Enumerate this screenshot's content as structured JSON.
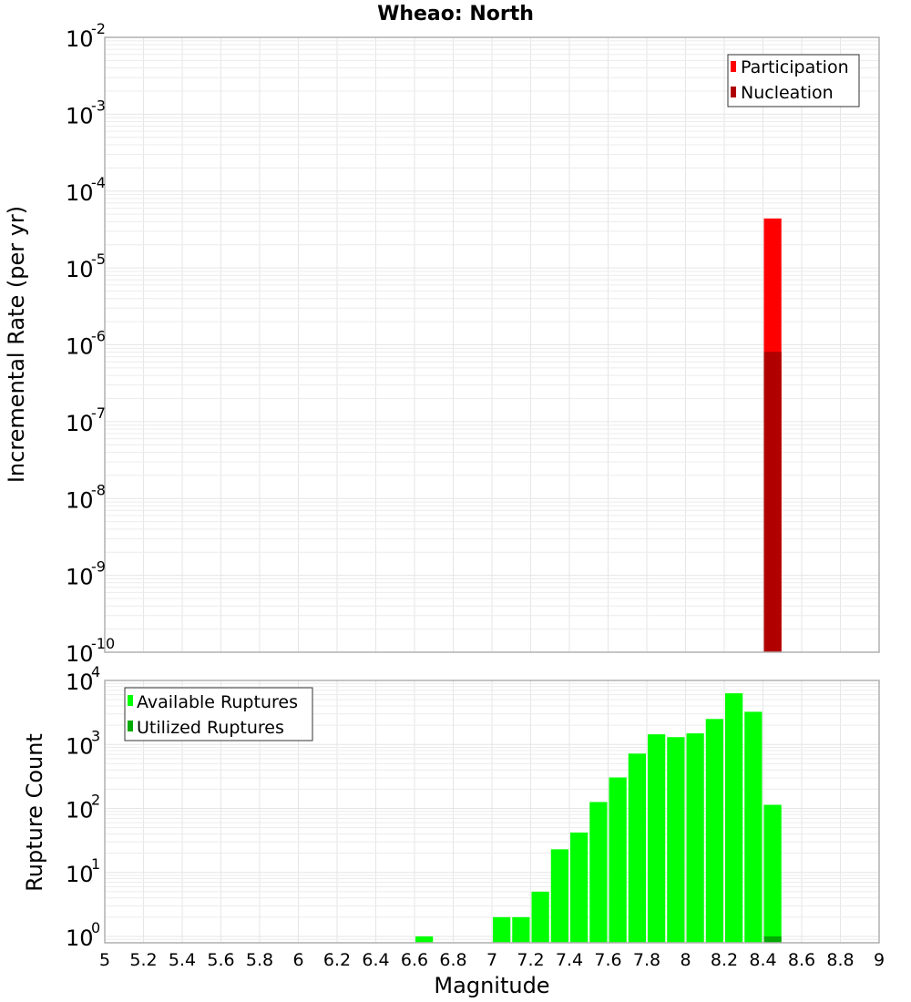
{
  "chart_data": [
    {
      "type": "bar",
      "title": "Wheao: North",
      "xlabel": "Magnitude",
      "ylabel": "Incremental Rate (per yr)",
      "yscale": "log",
      "ylim": [
        1e-10,
        0.01
      ],
      "xlim": [
        5,
        9
      ],
      "grid": true,
      "legend_position": "top-right",
      "legend": [
        "Participation",
        "Nucleation"
      ],
      "y_ticks": [
        "10^-2",
        "10^-3",
        "10^-4",
        "10^-5",
        "10^-6",
        "10^-7",
        "10^-8",
        "10^-9",
        "10^-10"
      ],
      "series": [
        {
          "name": "Participation",
          "color": "#ff0000",
          "x": [
            8.45
          ],
          "values": [
            4.4e-05
          ]
        },
        {
          "name": "Nucleation",
          "color": "#b00000",
          "x": [
            8.45
          ],
          "values": [
            8.1e-07
          ]
        }
      ]
    },
    {
      "type": "bar",
      "title": "",
      "xlabel": "Magnitude",
      "ylabel": "Rupture Count",
      "yscale": "log",
      "ylim": [
        0.8,
        10000
      ],
      "xlim": [
        5,
        9
      ],
      "grid": true,
      "legend_position": "top-left",
      "legend": [
        "Available Ruptures",
        "Utilized Ruptures"
      ],
      "y_ticks": [
        "10^0",
        "10^1",
        "10^2",
        "10^3",
        "10^4"
      ],
      "x_ticks": [
        "5",
        "5.2",
        "5.4",
        "5.6",
        "5.8",
        "6",
        "6.2",
        "6.4",
        "6.6",
        "6.8",
        "7",
        "7.2",
        "7.4",
        "7.6",
        "7.8",
        "8",
        "8.2",
        "8.4",
        "8.6",
        "8.8",
        "9"
      ],
      "series": [
        {
          "name": "Available Ruptures",
          "color": "#00ff00",
          "x": [
            6.65,
            7.05,
            7.15,
            7.25,
            7.35,
            7.45,
            7.55,
            7.65,
            7.75,
            7.85,
            7.95,
            8.05,
            8.15,
            8.25,
            8.35,
            8.45
          ],
          "values": [
            1,
            2,
            2,
            5,
            23,
            42,
            126,
            305,
            720,
            1440,
            1300,
            1490,
            2500,
            6300,
            3240,
            114
          ]
        },
        {
          "name": "Utilized Ruptures",
          "color": "#00aa00",
          "x": [
            8.45
          ],
          "values": [
            1
          ]
        }
      ]
    }
  ],
  "top": {
    "title": "Wheao: North",
    "ylabel": "Incremental Rate (per yr)",
    "legend": [
      {
        "label": "Participation",
        "color": "#ff0000"
      },
      {
        "label": "Nucleation",
        "color": "#b00000"
      }
    ],
    "yticks": [
      {
        "base": "10",
        "exp": "-2"
      },
      {
        "base": "10",
        "exp": "-3"
      },
      {
        "base": "10",
        "exp": "-4"
      },
      {
        "base": "10",
        "exp": "-5"
      },
      {
        "base": "10",
        "exp": "-6"
      },
      {
        "base": "10",
        "exp": "-7"
      },
      {
        "base": "10",
        "exp": "-8"
      },
      {
        "base": "10",
        "exp": "-9"
      },
      {
        "base": "10",
        "exp": "-10"
      }
    ]
  },
  "bottom": {
    "ylabel": "Rupture Count",
    "xlabel": "Magnitude",
    "legend": [
      {
        "label": "Available Ruptures",
        "color": "#00ff00"
      },
      {
        "label": "Utilized Ruptures",
        "color": "#00aa00"
      }
    ],
    "yticks": [
      {
        "base": "10",
        "exp": "4"
      },
      {
        "base": "10",
        "exp": "3"
      },
      {
        "base": "10",
        "exp": "2"
      },
      {
        "base": "10",
        "exp": "1"
      },
      {
        "base": "10",
        "exp": "0"
      }
    ],
    "xticks": [
      "5",
      "5.2",
      "5.4",
      "5.6",
      "5.8",
      "6",
      "6.2",
      "6.4",
      "6.6",
      "6.8",
      "7",
      "7.2",
      "7.4",
      "7.6",
      "7.8",
      "8",
      "8.2",
      "8.4",
      "8.6",
      "8.8",
      "9"
    ]
  }
}
